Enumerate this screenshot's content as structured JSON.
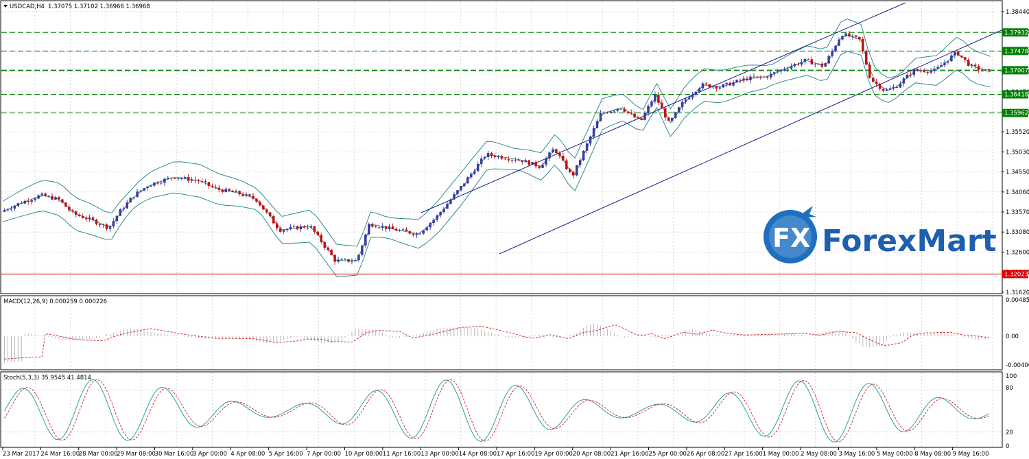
{
  "main": {
    "symbol": "USDCAD,H4",
    "ohlc": "1.37075 1.37102 1.36966 1.36968",
    "price_ticks": [
      "1.38440",
      "1.37950",
      "1.37460",
      "1.36960",
      "1.36470",
      "1.35980",
      "1.35520",
      "1.35030",
      "1.34550",
      "1.34060",
      "1.33570",
      "1.33080",
      "1.32600",
      "1.32110",
      "1.31620"
    ],
    "levels": [
      {
        "value": "1.37932",
        "color": "#008000",
        "price": 1.37932
      },
      {
        "value": "1.37478",
        "color": "#008000",
        "price": 1.37478
      },
      {
        "value": "1.37007",
        "color": "#008000",
        "price": 1.37007
      },
      {
        "value": "1.36418",
        "color": "#008000",
        "price": 1.36418
      },
      {
        "value": "1.35962",
        "color": "#008000",
        "price": 1.35962
      },
      {
        "value": "1.32023",
        "color": "#e00000",
        "price": 1.32023
      }
    ]
  },
  "macd": {
    "label": "MACD(12,26,9) 0.000259 0.000226",
    "ticks": [
      "0.004858",
      "0.00",
      "-0.004061"
    ]
  },
  "stoch": {
    "label": "Stoch(5,3,3) 35.9545 41.4814",
    "ticks": [
      "100",
      "80",
      "20",
      "0"
    ]
  },
  "time_axis": [
    "23 Mar 2017",
    "24 Mar 16:00",
    "28 Mar 00:00",
    "29 Mar 08:00",
    "30 Mar 16:00",
    "3 Apr 00:00",
    "4 Apr 08:00",
    "5 Apr 16:00",
    "7 Apr 00:00",
    "10 Apr 08:00",
    "11 Apr 16:00",
    "13 Apr 00:00",
    "14 Apr 08:00",
    "17 Apr 16:00",
    "19 Apr 00:00",
    "20 Apr 08:00",
    "21 Apr 16:00",
    "25 Apr 00:00",
    "26 Apr 08:00",
    "27 Apr 16:00",
    "1 May 00:00",
    "2 May 08:00",
    "3 May 16:00",
    "5 May 00:00",
    "8 May 08:00",
    "9 May 16:00"
  ],
  "logo": {
    "mark": "FX",
    "text": "ForexMart"
  },
  "colors": {
    "up": "#3a3aa0",
    "down": "#c01010",
    "bands": "#2e8b8b",
    "channel": "#1a1a8c",
    "macd_signal": "#d03030",
    "stoch_main": "#2aa0a0",
    "stoch_signal": "#d03030"
  }
}
